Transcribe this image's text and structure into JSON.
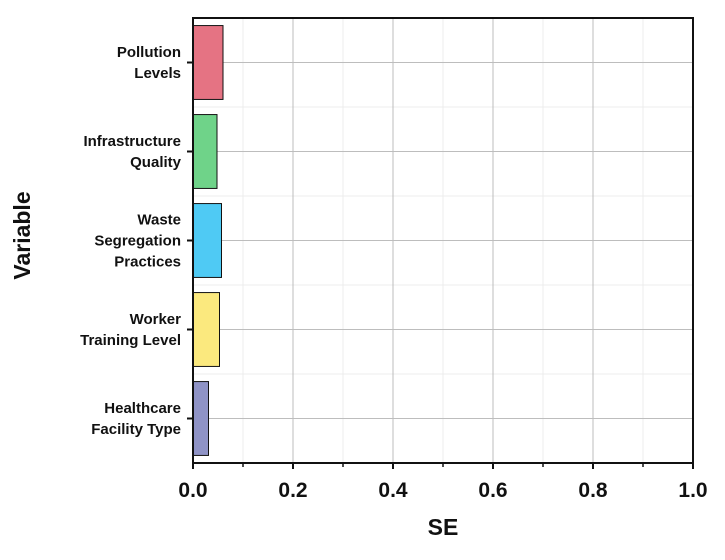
{
  "chart_data": {
    "type": "bar",
    "orientation": "horizontal",
    "categories": [
      [
        "Pollution",
        "Levels"
      ],
      [
        "Infrastructure",
        "Quality"
      ],
      [
        "Waste",
        "Segregation",
        "Practices"
      ],
      [
        "Worker",
        "Training Level"
      ],
      [
        "Healthcare",
        "Facility Type"
      ]
    ],
    "values": [
      0.06,
      0.048,
      0.057,
      0.053,
      0.031
    ],
    "colors": [
      "#e57383",
      "#6fd389",
      "#4fcaf4",
      "#fbe97e",
      "#8f93c6"
    ],
    "xlabel": "SE",
    "ylabel": "Variable",
    "xlim": [
      0.0,
      1.0
    ],
    "xticks": [
      0.0,
      0.2,
      0.4,
      0.6,
      0.8,
      1.0
    ],
    "xtick_labels": [
      "0.0",
      "0.2",
      "0.4",
      "0.6",
      "0.8",
      "1.0"
    ],
    "grid": true,
    "minor_grid": true,
    "legend": "none"
  }
}
